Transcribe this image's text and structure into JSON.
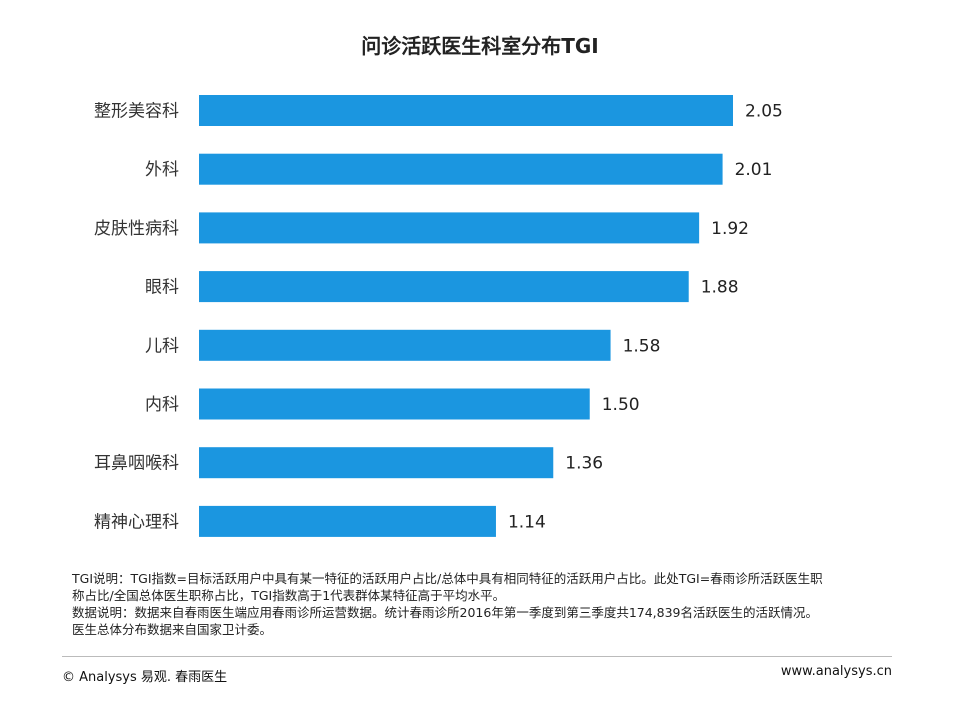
{
  "chart_data": {
    "type": "bar",
    "orientation": "horizontal",
    "title": "问诊活跃医生科室分布TGI",
    "categories": [
      "整形美容科",
      "外科",
      "皮肤性病科",
      "眼科",
      "儿科",
      "内科",
      "耳鼻咽喉科",
      "精神心理科"
    ],
    "values": [
      2.05,
      2.01,
      1.92,
      1.88,
      1.58,
      1.5,
      1.36,
      1.14
    ],
    "value_labels": [
      "2.05",
      "2.01",
      "1.92",
      "1.88",
      "1.58",
      "1.50",
      "1.36",
      "1.14"
    ],
    "xlim": [
      0,
      2.05
    ],
    "grid": false,
    "bar_color": "#1b96e0"
  },
  "notes": {
    "line1": "TGI说明：TGI指数=目标活跃用户中具有某一特征的活跃用户占比/总体中具有相同特征的活跃用户占比。此处TGI=春雨诊所活跃医生职",
    "line2": "称占比/全国总体医生职称占比，TGI指数高于1代表群体某特征高于平均水平。",
    "line3": "数据说明：数据来自春雨医生端应用春雨诊所运营数据。统计春雨诊所2016年第一季度到第三季度共174,839名活跃医生的活跃情况。",
    "line4": "医生总体分布数据来自国家卫计委。"
  },
  "footer": {
    "left": "© Analysys 易观. 春雨医生",
    "right": "www.analysys.cn"
  }
}
